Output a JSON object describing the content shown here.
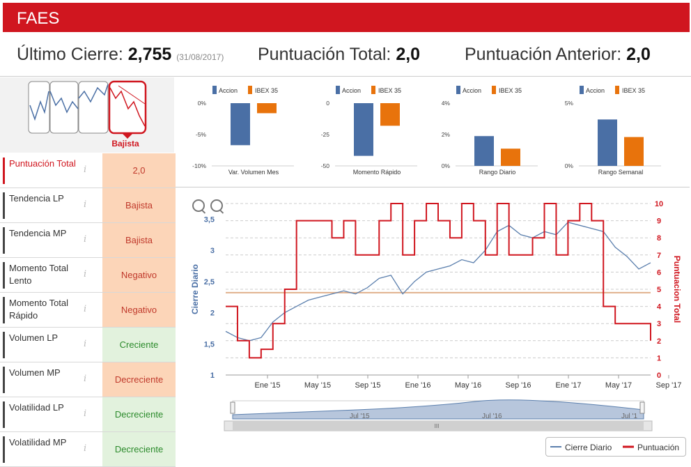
{
  "header": {
    "title": "FAES"
  },
  "stats": {
    "last_close_label": "Último Cierre:",
    "last_close_value": "2,755",
    "last_close_date": "(31/08/2017)",
    "total_score_label": "Puntuación Total:",
    "total_score_value": "2,0",
    "prev_score_label": "Puntuación Anterior:",
    "prev_score_value": "2,0"
  },
  "trend": {
    "selected_label": "Bajista"
  },
  "indicators": [
    {
      "name": "Puntuación Total",
      "value": "2,0",
      "kind": "neutral"
    },
    {
      "name": "Tendencia LP",
      "value": "Bajista",
      "kind": "neg"
    },
    {
      "name": "Tendencia MP",
      "value": "Bajista",
      "kind": "neg"
    },
    {
      "name": "Momento Total Lento",
      "value": "Negativo",
      "kind": "neg"
    },
    {
      "name": "Momento Total Rápido",
      "value": "Negativo",
      "kind": "neg"
    },
    {
      "name": "Volumen LP",
      "value": "Creciente",
      "kind": "pos"
    },
    {
      "name": "Volumen MP",
      "value": "Decreciente",
      "kind": "neg"
    },
    {
      "name": "Volatilidad LP",
      "value": "Decreciente",
      "kind": "pos"
    },
    {
      "name": "Volatilidad MP",
      "value": "Decreciente",
      "kind": "pos"
    }
  ],
  "info_glyph": "i",
  "mini_legend": {
    "series_a": "Accion",
    "series_b": "IBEX 35"
  },
  "colors": {
    "accion": "#4a6fa5",
    "ibex": "#e8730c",
    "red": "#d0161f",
    "price_line": "#5b7fad"
  },
  "chart_data": [
    {
      "type": "bar",
      "title": "Var. Volumen Mes",
      "categories": [
        "Accion",
        "IBEX 35"
      ],
      "values": [
        -6.7,
        -1.6
      ],
      "ylim": [
        -10,
        0
      ],
      "yticks": [
        "0%",
        "-5%",
        "-10%"
      ],
      "ytick_values": [
        0,
        -5,
        -10
      ]
    },
    {
      "type": "bar",
      "title": "Momento Rápido",
      "categories": [
        "Accion",
        "IBEX 35"
      ],
      "values": [
        -42,
        -18
      ],
      "ylim": [
        -50,
        0
      ],
      "yticks": [
        "0",
        "-25",
        "-50"
      ],
      "ytick_values": [
        0,
        -25,
        -50
      ]
    },
    {
      "type": "bar",
      "title": "Rango Diario",
      "categories": [
        "Accion",
        "IBEX 35"
      ],
      "values": [
        1.9,
        1.1
      ],
      "ylim": [
        0,
        4
      ],
      "yticks": [
        "4%",
        "2%",
        "0%"
      ],
      "ytick_values": [
        4,
        2,
        0
      ]
    },
    {
      "type": "bar",
      "title": "Rango Semanal",
      "categories": [
        "Accion",
        "IBEX 35"
      ],
      "values": [
        3.7,
        2.3
      ],
      "ylim": [
        0,
        5
      ],
      "yticks": [
        "5%",
        "0%"
      ],
      "ytick_values": [
        5,
        0
      ]
    },
    {
      "type": "line",
      "title": "",
      "xlabel": "",
      "ylabel": "Cierre Diario",
      "y2label": "Puntuacion Total",
      "xticks": [
        "Ene '15",
        "May '15",
        "Sep '15",
        "Ene '16",
        "May '16",
        "Sep '16",
        "Ene '17",
        "May '17",
        "Sep '17"
      ],
      "yticks": [
        "1",
        "1,5",
        "2",
        "2,5",
        "3",
        "3,5"
      ],
      "ytick_values": [
        1,
        1.5,
        2,
        2.5,
        3,
        3.5
      ],
      "y2ticks": [
        "0",
        "1",
        "2",
        "3",
        "4",
        "5",
        "6",
        "7",
        "8",
        "9",
        "10"
      ],
      "ylim": [
        1,
        3.75
      ],
      "y2lim": [
        0,
        10
      ],
      "reference_line_y2": 4.8,
      "series": [
        {
          "name": "Cierre Diario",
          "x_months": [
            0,
            1,
            2,
            3,
            4,
            5,
            6,
            7,
            8,
            9,
            10,
            11,
            12,
            13,
            14,
            15,
            16,
            17,
            18,
            19,
            20,
            21,
            22,
            23,
            24,
            25,
            26,
            27,
            28,
            29,
            30,
            31,
            32,
            33,
            34,
            35,
            36
          ],
          "values": [
            1.7,
            1.6,
            1.55,
            1.6,
            1.85,
            2.0,
            2.1,
            2.2,
            2.25,
            2.3,
            2.35,
            2.3,
            2.4,
            2.55,
            2.6,
            2.3,
            2.5,
            2.65,
            2.7,
            2.75,
            2.85,
            2.8,
            3.0,
            3.3,
            3.4,
            3.25,
            3.2,
            3.3,
            3.25,
            3.45,
            3.4,
            3.35,
            3.3,
            3.05,
            2.9,
            2.7,
            2.8
          ]
        },
        {
          "name": "Puntuación",
          "x_months": [
            0,
            1,
            2,
            3,
            4,
            5,
            6,
            7,
            8,
            9,
            10,
            11,
            12,
            13,
            14,
            15,
            16,
            17,
            18,
            19,
            20,
            21,
            22,
            23,
            24,
            25,
            26,
            27,
            28,
            29,
            30,
            31,
            32,
            33,
            34,
            35,
            36
          ],
          "values": [
            4,
            2,
            1,
            1.5,
            3,
            5,
            9,
            9,
            9,
            8,
            9,
            7,
            7,
            9,
            10,
            7,
            9,
            10,
            9,
            8,
            10,
            9,
            7,
            10,
            7,
            7,
            8,
            10,
            7,
            9,
            10,
            9,
            4,
            3,
            3,
            3,
            2
          ]
        }
      ]
    }
  ],
  "navigator": {
    "labels": [
      "Jul '15",
      "Jul '16",
      "Jul '1"
    ],
    "scroll_glyph": "III"
  },
  "legend": {
    "price_label": "Cierre Diario",
    "score_label": "Puntuación"
  }
}
